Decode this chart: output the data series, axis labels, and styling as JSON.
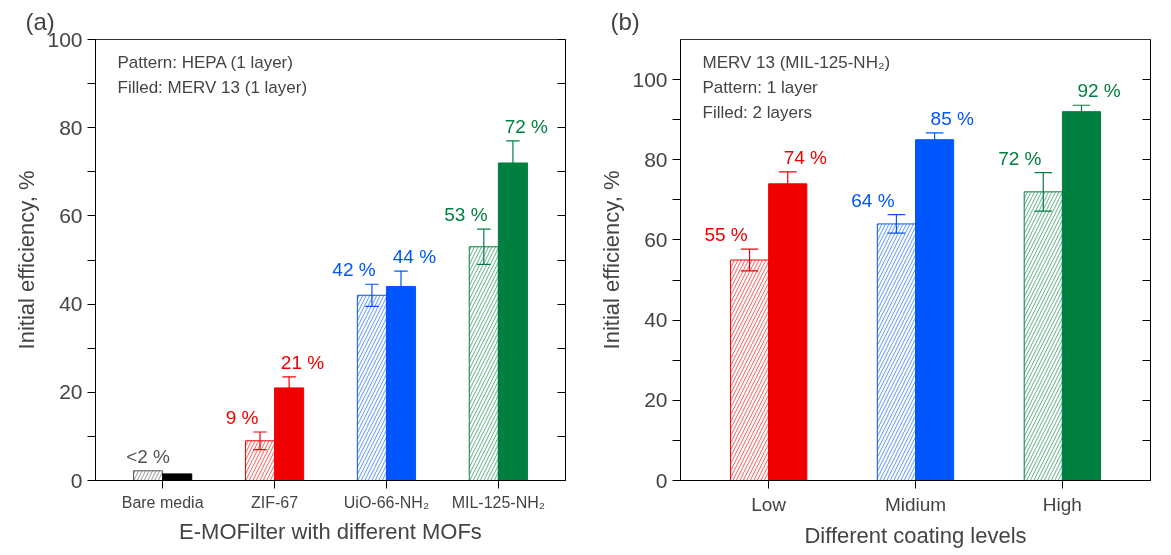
{
  "chart_data": [
    {
      "type": "bar",
      "title": "(a)",
      "xlabel": "E-MOFilter with different MOFs",
      "ylabel": "Initial efficiency, %",
      "categories": [
        "Bare media",
        "ZIF-67",
        "UiO-66-NH₂",
        "MIL-125-NH₂"
      ],
      "series": [
        {
          "colors": [
            "#555555",
            "#f00000",
            "#0055ff",
            "#008040"
          ],
          "values": [
            2.2,
            9,
            42,
            53
          ],
          "errors": [
            null,
            2,
            2.5,
            4
          ],
          "value_labels": [
            "<2 %",
            "9 %",
            "42 %",
            "53 %"
          ]
        },
        {
          "colors": [
            "#000000",
            "#f00000",
            "#0055ff",
            "#008040"
          ],
          "values": [
            1.5,
            21,
            44,
            72
          ],
          "errors": [
            null,
            2.5,
            3.5,
            5
          ],
          "value_labels": [
            null,
            "21 %",
            "44 %",
            "72 %"
          ]
        }
      ],
      "ylim": [
        0,
        100
      ],
      "yticks": [
        0,
        {
          "value": 10,
          "label": null
        },
        20,
        {
          "value": 30,
          "label": null
        },
        40,
        {
          "value": 50,
          "label": null
        },
        60,
        {
          "value": 70,
          "label": null
        },
        80,
        {
          "value": 90,
          "label": null
        },
        100
      ],
      "annotations": [
        "Pattern: HEPA (1 layer)",
        "Filled: MERV 13 (1 layer)"
      ]
    },
    {
      "type": "bar",
      "title": "(b)",
      "xlabel": "Different coating levels",
      "ylabel": "Initial efficiency, %",
      "categories": [
        "Low",
        "Midium",
        "High"
      ],
      "series": [
        {
          "colors": [
            "#f00000",
            "#0055ff",
            "#008040"
          ],
          "values": [
            55,
            64,
            72
          ],
          "errors": [
            2.7,
            2.3,
            4.8
          ],
          "value_labels": [
            "55 %",
            "64 %",
            "72 %"
          ]
        },
        {
          "colors": [
            "#f00000",
            "#0055ff",
            "#008040"
          ],
          "values": [
            74,
            85,
            92
          ],
          "errors": [
            3,
            1.7,
            1.6
          ],
          "value_labels": [
            "74 %",
            "85 %",
            "92 %"
          ]
        }
      ],
      "ylim": [
        0,
        110
      ],
      "yticks": [
        0,
        {
          "value": 10,
          "label": null
        },
        20,
        {
          "value": 30,
          "label": null
        },
        40,
        {
          "value": 50,
          "label": null
        },
        60,
        {
          "value": 70,
          "label": null
        },
        80,
        {
          "value": 90,
          "label": null
        },
        100
      ],
      "annotations": [
        "MERV 13 (MIL-125-NH₂)",
        "Pattern: 1 layer",
        "Filled: 2 layers"
      ]
    }
  ]
}
